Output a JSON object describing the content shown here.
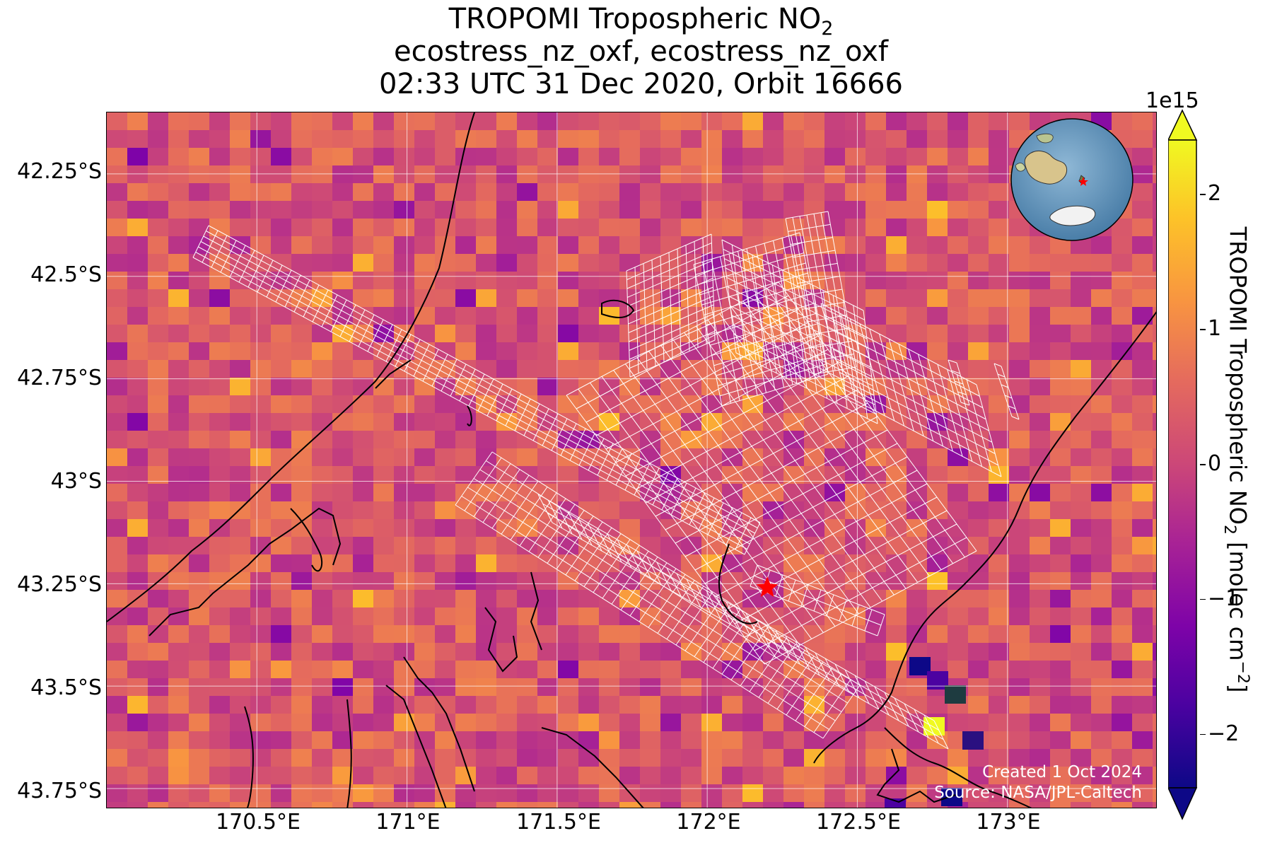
{
  "title": {
    "line1": "TROPOMI Tropospheric NO",
    "line1_sub": "2",
    "line2": "ecostress_nz_oxf, ecostress_nz_oxf",
    "line3": "02:33 UTC 31 Dec 2020, Orbit 16666"
  },
  "map": {
    "colormap": "plasma",
    "lon_range": [
      170.0,
      173.5
    ],
    "lat_range": [
      -43.8,
      -42.1
    ],
    "y_ticks": [
      "42.25°S",
      "42.5°S",
      "42.75°S",
      "43°S",
      "43.25°S",
      "43.5°S",
      "43.75°S"
    ],
    "y_tick_values": [
      -42.25,
      -42.5,
      -42.75,
      -43.0,
      -43.25,
      -43.5,
      -43.75
    ],
    "x_ticks": [
      "170.5°E",
      "171°E",
      "171.5°E",
      "172°E",
      "172.5°E",
      "173°E"
    ],
    "x_tick_values": [
      170.5,
      171.0,
      171.5,
      172.0,
      172.5,
      173.0
    ],
    "site_marker": {
      "icon": "red-star-icon",
      "lon": 172.2,
      "lat": -43.26,
      "color": "#ff0000"
    },
    "grid_color": "#ffffff",
    "swath_color": "#ffffff",
    "coastline_color": "#000000"
  },
  "inset_globe": {
    "icon": "globe-icon",
    "marker_color": "#ff0000"
  },
  "credit": {
    "created": "Created 1 Oct 2024",
    "source": "Source: NASA/JPL-Caltech"
  },
  "colorbar": {
    "label": "TROPOMI Tropospheric NO",
    "label_sub": "2",
    "label_units_pre": " [molec cm",
    "label_units_sup": "−2",
    "label_units_post": "]",
    "exponent": "1e15",
    "ticks": [
      "2",
      "1",
      "0",
      "−1",
      "−2"
    ],
    "tick_values": [
      2,
      1,
      0,
      -1,
      -2
    ],
    "range": [
      -2.4,
      2.4
    ],
    "extend": "both"
  }
}
